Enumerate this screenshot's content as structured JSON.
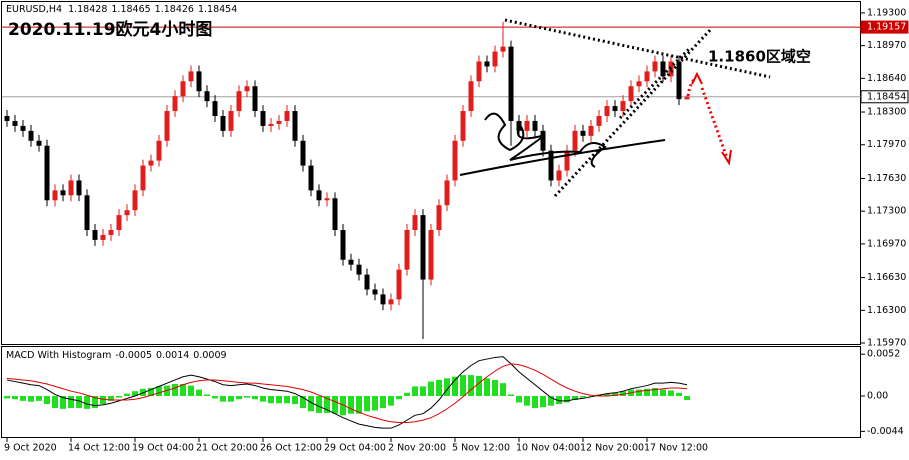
{
  "chart_data": {
    "type": "candlestick",
    "title": "2020.11.19欧元4小时图",
    "symbol": "EURUSD,H4",
    "annotation": "1.1860区域空",
    "categories": [
      "9 Oct 2020",
      null,
      null,
      null,
      null,
      null,
      null,
      null,
      "14 Oct 12:00",
      null,
      null,
      null,
      null,
      null,
      null,
      null,
      "19 Oct 04:00",
      null,
      null,
      null,
      null,
      null,
      null,
      null,
      "21 Oct 20:00",
      null,
      null,
      null,
      null,
      null,
      null,
      null,
      "26 Oct 12:00",
      null,
      null,
      null,
      null,
      null,
      null,
      null,
      "29 Oct 04:00",
      null,
      null,
      null,
      null,
      null,
      null,
      null,
      "2 Nov 20:00",
      null,
      null,
      null,
      null,
      null,
      null,
      null,
      "5 Nov 12:00",
      null,
      null,
      null,
      null,
      null,
      null,
      null,
      "10 Nov 04:00",
      null,
      null,
      null,
      null,
      null,
      null,
      null,
      "12 Nov 20:00",
      null,
      null,
      null,
      null,
      null,
      null,
      null,
      "17 Nov 12:00",
      null,
      null,
      null,
      null,
      null
    ],
    "open": [
      1.1826,
      1.1821,
      1.1816,
      1.1811,
      1.1801,
      1.1796,
      1.1741,
      1.1751,
      1.1746,
      1.1761,
      1.1746,
      1.1711,
      1.1701,
      1.1706,
      1.1711,
      1.1726,
      1.1731,
      1.1751,
      1.1776,
      1.1781,
      1.1801,
      1.1831,
      1.1846,
      1.1861,
      1.1871,
      1.1851,
      1.1841,
      1.1826,
      1.1811,
      1.1831,
      1.1851,
      1.1856,
      1.1831,
      1.1816,
      1.1818,
      1.1821,
      1.1831,
      1.1801,
      1.1776,
      1.1751,
      1.1741,
      1.1743,
      1.1711,
      1.1681,
      1.1676,
      1.1666,
      1.1651,
      1.1646,
      1.1636,
      1.1641,
      1.1671,
      1.1711,
      1.1726,
      1.1661,
      1.1711,
      1.1736,
      1.1761,
      1.1801,
      1.1831,
      1.1861,
      1.1881,
      1.1876,
      1.1891,
      1.1896,
      1.1821,
      1.1811,
      1.1821,
      1.1811,
      1.1791,
      1.1761,
      1.1771,
      1.1791,
      1.1811,
      1.1806,
      1.1816,
      1.1826,
      1.1836,
      1.1831,
      1.1841,
      1.1856,
      1.1861,
      1.1871,
      1.1881,
      1.1866,
      1.1881,
      1.18428
    ],
    "high": [
      1.1832,
      1.1827,
      1.1822,
      1.1817,
      1.1807,
      1.1802,
      1.1757,
      1.1757,
      1.1767,
      1.1767,
      1.1752,
      1.1717,
      1.1712,
      1.1717,
      1.1732,
      1.1737,
      1.1757,
      1.1782,
      1.1787,
      1.1807,
      1.1837,
      1.1852,
      1.1867,
      1.1877,
      1.1877,
      1.1857,
      1.1847,
      1.1832,
      1.1837,
      1.1857,
      1.1862,
      1.1862,
      1.1837,
      1.1824,
      1.1827,
      1.1837,
      1.1837,
      1.1807,
      1.1782,
      1.1757,
      1.1749,
      1.1749,
      1.1717,
      1.1687,
      1.1682,
      1.1672,
      1.1657,
      1.1652,
      1.1647,
      1.1677,
      1.1717,
      1.1732,
      1.1732,
      1.1717,
      1.1742,
      1.1767,
      1.1807,
      1.1837,
      1.1867,
      1.1887,
      1.1887,
      1.1897,
      1.1921,
      1.1902,
      1.1827,
      1.1827,
      1.1827,
      1.1817,
      1.1797,
      1.1777,
      1.1797,
      1.1817,
      1.1817,
      1.1822,
      1.1832,
      1.1842,
      1.1842,
      1.1847,
      1.1862,
      1.1867,
      1.1877,
      1.1887,
      1.1887,
      1.1887,
      1.1887,
      1.18465
    ],
    "low": [
      1.1815,
      1.181,
      1.1805,
      1.1795,
      1.179,
      1.1735,
      1.1735,
      1.174,
      1.174,
      1.174,
      1.1705,
      1.1695,
      1.1695,
      1.17,
      1.1705,
      1.172,
      1.1725,
      1.1745,
      1.177,
      1.1775,
      1.1795,
      1.1825,
      1.184,
      1.1855,
      1.1845,
      1.1835,
      1.182,
      1.1805,
      1.1805,
      1.1825,
      1.1845,
      1.1825,
      1.181,
      1.181,
      1.1812,
      1.1815,
      1.1795,
      1.177,
      1.1745,
      1.1735,
      1.1735,
      1.1705,
      1.1675,
      1.167,
      1.166,
      1.1645,
      1.164,
      1.163,
      1.163,
      1.1635,
      1.1665,
      1.1705,
      1.1601,
      1.1655,
      1.1705,
      1.173,
      1.1755,
      1.1795,
      1.1825,
      1.1855,
      1.187,
      1.187,
      1.1885,
      1.1796,
      1.1805,
      1.1805,
      1.1805,
      1.1785,
      1.1755,
      1.1755,
      1.1765,
      1.1785,
      1.18,
      1.18,
      1.181,
      1.182,
      1.1825,
      1.1825,
      1.1835,
      1.185,
      1.1855,
      1.1865,
      1.186,
      1.186,
      1.1837,
      1.18426
    ],
    "close": [
      1.1821,
      1.1816,
      1.1811,
      1.1801,
      1.1796,
      1.1741,
      1.1751,
      1.1746,
      1.1761,
      1.1746,
      1.1711,
      1.1701,
      1.1706,
      1.1711,
      1.1726,
      1.1731,
      1.1751,
      1.1776,
      1.1781,
      1.1801,
      1.1831,
      1.1846,
      1.1861,
      1.1871,
      1.1851,
      1.1841,
      1.1826,
      1.1811,
      1.1831,
      1.1851,
      1.1856,
      1.1831,
      1.1816,
      1.1818,
      1.1821,
      1.1831,
      1.1801,
      1.1776,
      1.1751,
      1.1741,
      1.1743,
      1.1711,
      1.1681,
      1.1676,
      1.1666,
      1.1651,
      1.1646,
      1.1636,
      1.1641,
      1.1671,
      1.1711,
      1.1726,
      1.1661,
      1.1711,
      1.1736,
      1.1761,
      1.1801,
      1.1831,
      1.1861,
      1.1881,
      1.1876,
      1.1891,
      1.1896,
      1.1821,
      1.1811,
      1.1821,
      1.1811,
      1.1791,
      1.1761,
      1.1771,
      1.1791,
      1.1811,
      1.1806,
      1.1816,
      1.1826,
      1.1836,
      1.1831,
      1.1841,
      1.1856,
      1.1861,
      1.1871,
      1.1881,
      1.1866,
      1.1881,
      1.1843,
      1.18454
    ],
    "up_color": "#e01e1e",
    "down_color": "#000000",
    "ylim": [
      1.1596,
      1.1941
    ],
    "yticks": [
      {
        "value": 1.193,
        "label": "1.19300"
      },
      {
        "value": 1.1897,
        "label": "1.18970"
      },
      {
        "value": 1.1864,
        "label": "1.18640"
      },
      {
        "value": 1.183,
        "label": "1.18300"
      },
      {
        "value": 1.1797,
        "label": "1.17970"
      },
      {
        "value": 1.1763,
        "label": "1.17630"
      },
      {
        "value": 1.173,
        "label": "1.17300"
      },
      {
        "value": 1.1697,
        "label": "1.16970"
      },
      {
        "value": 1.1663,
        "label": "1.16630"
      },
      {
        "value": 1.163,
        "label": "1.16300"
      },
      {
        "value": 1.1597,
        "label": "1.15970"
      }
    ],
    "levels": [
      {
        "value": 1.19157,
        "color": "#cc0000"
      },
      {
        "value": 1.18454,
        "color": "#a0a0a0"
      }
    ],
    "indicator": {
      "type": "macd",
      "title": "MACD With Histogram",
      "histogram": {
        "color": "#22dd22",
        "values": [
          -0.0003,
          -0.0004,
          -0.0006,
          -0.0007,
          -0.0006,
          -0.001,
          -0.0015,
          -0.0016,
          -0.0015,
          -0.0015,
          -0.0016,
          -0.0015,
          -0.001,
          -0.0006,
          -0.0002,
          0.0003,
          0.0006,
          0.0009,
          0.001,
          0.0012,
          0.0013,
          0.0015,
          0.0015,
          0.0013,
          0.0008,
          0.0002,
          -0.0003,
          -0.0007,
          -0.0007,
          -0.0004,
          -0.0002,
          -0.0004,
          -0.0007,
          -0.0009,
          -0.0009,
          -0.0009,
          -0.001,
          -0.0015,
          -0.0019,
          -0.0021,
          -0.0021,
          -0.0022,
          -0.0024,
          -0.0022,
          -0.0022,
          -0.0019,
          -0.0018,
          -0.0015,
          -0.0012,
          -0.0004,
          0.0004,
          0.0012,
          0.0012,
          0.0018,
          0.002,
          0.0022,
          0.0024,
          0.0026,
          0.0026,
          0.0025,
          0.0022,
          0.002,
          0.0016,
          0.0002,
          -0.0008,
          -0.0012,
          -0.0015,
          -0.0014,
          -0.0012,
          -0.001,
          -0.0008,
          -0.0005,
          -0.0002,
          0,
          0.0002,
          0.0003,
          0.0004,
          0.0006,
          0.0008,
          0.0008,
          0.0009,
          0.001,
          0.0008,
          0.0007,
          0.0004,
          -0.0005
        ]
      },
      "macd": {
        "color": "#000000",
        "values": [
          0.002,
          0.0018,
          0.0016,
          0.0014,
          0.0013,
          0.0008,
          0.0002,
          -0.0002,
          -0.0004,
          -0.0006,
          -0.001,
          -0.0012,
          -0.0011,
          -0.0009,
          -0.0006,
          -0.0003,
          0,
          0.0004,
          0.0008,
          0.0012,
          0.0016,
          0.002,
          0.0024,
          0.0026,
          0.0024,
          0.0021,
          0.0018,
          0.0014,
          0.0013,
          0.0014,
          0.0015,
          0.0013,
          0.001,
          0.0008,
          0.0007,
          0.0006,
          0.0003,
          -0.0002,
          -0.0008,
          -0.0013,
          -0.0017,
          -0.0022,
          -0.0027,
          -0.0031,
          -0.0035,
          -0.0037,
          -0.0039,
          -0.004,
          -0.004,
          -0.0036,
          -0.003,
          -0.0024,
          -0.0022,
          -0.0015,
          -0.0005,
          0.0008,
          0.002,
          0.003,
          0.0038,
          0.0044,
          0.0046,
          0.0048,
          0.0049,
          0.004,
          0.003,
          0.0022,
          0.0014,
          0.0006,
          -0.0002,
          -0.0006,
          -0.0006,
          -0.0004,
          -0.0003,
          -0.0001,
          0.0001,
          0.0003,
          0.0004,
          0.0006,
          0.0009,
          0.0011,
          0.0013,
          0.0016,
          0.0016,
          0.0017,
          0.0016,
          0.0014
        ]
      },
      "signal": {
        "color": "#e00000",
        "values": [
          0.0022,
          0.0021,
          0.002,
          0.0019,
          0.0017,
          0.0015,
          0.0012,
          0.0009,
          0.0006,
          0.0004,
          0.0001,
          -0.0002,
          -0.0004,
          -0.0005,
          -0.0005,
          -0.0005,
          -0.0004,
          -0.0002,
          0.0001,
          0.0004,
          0.0007,
          0.001,
          0.0014,
          0.0017,
          0.0019,
          0.002,
          0.002,
          0.0019,
          0.0018,
          0.0017,
          0.0016,
          0.0016,
          0.0015,
          0.0014,
          0.0013,
          0.0012,
          0.001,
          0.0008,
          0.0005,
          0.0001,
          -0.0003,
          -0.0007,
          -0.0011,
          -0.0016,
          -0.002,
          -0.0024,
          -0.0027,
          -0.003,
          -0.0032,
          -0.0033,
          -0.0033,
          -0.0032,
          -0.003,
          -0.0027,
          -0.0022,
          -0.0016,
          -0.0009,
          -0.0001,
          0.0008,
          0.0016,
          0.0024,
          0.0031,
          0.0037,
          0.004,
          0.0039,
          0.0036,
          0.0032,
          0.0027,
          0.0021,
          0.0015,
          0.001,
          0.0006,
          0.0003,
          0.0001,
          0,
          0,
          0.0001,
          0.0002,
          0.0004,
          0.0006,
          0.0007,
          0.0008,
          0.0009,
          0.001,
          0.001,
          0.0009
        ]
      },
      "ylim": [
        -0.0051,
        0.0061
      ],
      "yticks": [
        0.0052,
        {
          "value": 0,
          "label": "0.00"
        },
        -0.0044
      ]
    }
  }
}
